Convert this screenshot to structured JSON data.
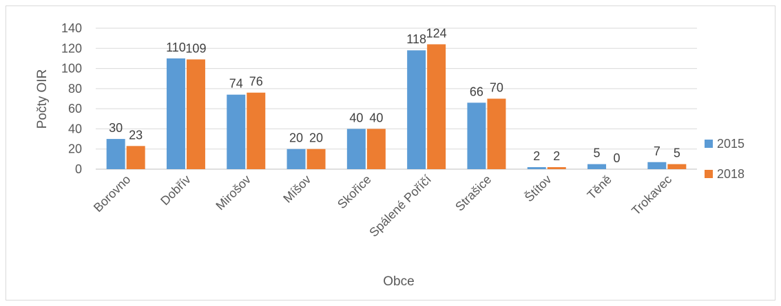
{
  "chart_data": {
    "type": "bar",
    "xlabel": "Obce",
    "ylabel": "Počty OIR",
    "ylim": [
      0,
      140
    ],
    "yticks": [
      0,
      20,
      40,
      60,
      80,
      100,
      120,
      140
    ],
    "grid": true,
    "legend_position": "right",
    "categories": [
      "Borovno",
      "Dobřív",
      "Mirošov",
      "Míšov",
      "Skořice",
      "Spálené Poříčí",
      "Strašice",
      "Štítov",
      "Těně",
      "Trokavec"
    ],
    "series": [
      {
        "name": "2015",
        "color": "#5b9bd5",
        "values": [
          30,
          110,
          74,
          20,
          40,
          118,
          66,
          2,
          5,
          7
        ]
      },
      {
        "name": "2018",
        "color": "#ed7d31",
        "values": [
          23,
          109,
          76,
          20,
          40,
          124,
          70,
          2,
          0,
          5
        ]
      }
    ]
  }
}
